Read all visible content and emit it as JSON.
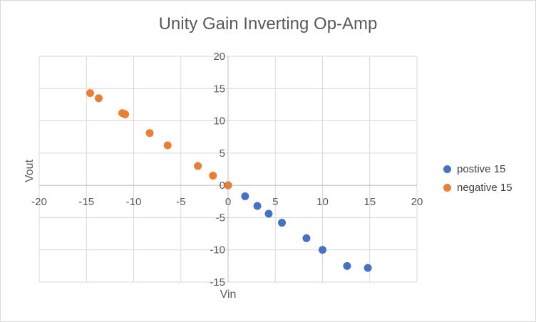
{
  "chart_data": {
    "type": "scatter",
    "title": "Unity Gain Inverting Op-Amp",
    "xlabel": "Vin",
    "ylabel": "Vout",
    "xlim": [
      -20,
      20
    ],
    "ylim": [
      -15,
      20
    ],
    "x_ticks": [
      -20,
      -15,
      -10,
      -5,
      0,
      5,
      10,
      15,
      20
    ],
    "y_ticks": [
      -15,
      -10,
      -5,
      0,
      5,
      10,
      15,
      20
    ],
    "grid": true,
    "legend_position": "right",
    "series": [
      {
        "name": "postive 15",
        "color": "#4472C4",
        "points": [
          {
            "x": 0,
            "y": 0
          },
          {
            "x": 1.8,
            "y": -1.7
          },
          {
            "x": 3.1,
            "y": -3.2
          },
          {
            "x": 4.3,
            "y": -4.4
          },
          {
            "x": 5.7,
            "y": -5.8
          },
          {
            "x": 8.3,
            "y": -8.2
          },
          {
            "x": 10.0,
            "y": -10.0
          },
          {
            "x": 12.6,
            "y": -12.5
          },
          {
            "x": 14.8,
            "y": -12.8
          }
        ]
      },
      {
        "name": "negative 15",
        "color": "#ED7D31",
        "points": [
          {
            "x": -14.6,
            "y": 14.3
          },
          {
            "x": -13.7,
            "y": 13.5
          },
          {
            "x": -11.2,
            "y": 11.2
          },
          {
            "x": -10.9,
            "y": 11.0
          },
          {
            "x": -8.3,
            "y": 8.1
          },
          {
            "x": -6.4,
            "y": 6.2
          },
          {
            "x": -3.2,
            "y": 3.0
          },
          {
            "x": -1.6,
            "y": 1.5
          },
          {
            "x": 0,
            "y": 0
          }
        ]
      }
    ]
  }
}
